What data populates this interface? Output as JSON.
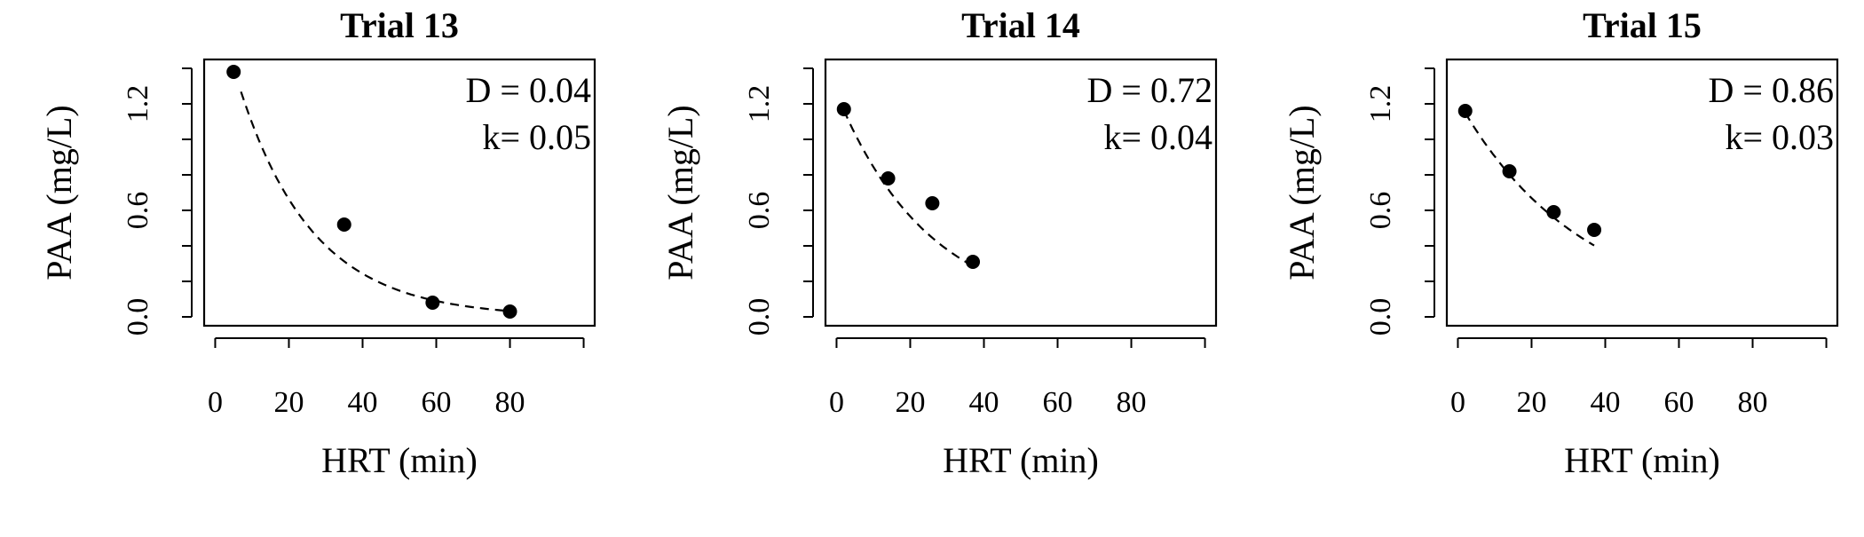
{
  "chart_data": [
    {
      "type": "scatter",
      "title": "Trial 13",
      "xlabel": "HRT (min)",
      "ylabel": "PAA (mg/L)",
      "xlim": [
        -3,
        103
      ],
      "ylim": [
        -0.05,
        1.45
      ],
      "xticks": [
        "0",
        "20",
        "40",
        "60",
        "80"
      ],
      "yticks": [
        "0.0",
        "0.6",
        "1.2"
      ],
      "annotation": [
        "D = 0.04",
        "k= 0.05"
      ],
      "series": [
        {
          "points": [
            {
              "x": 5,
              "y": 1.38
            },
            {
              "x": 35,
              "y": 0.52
            },
            {
              "x": 59,
              "y": 0.08
            },
            {
              "x": 80,
              "y": 0.03
            }
          ]
        }
      ],
      "fit": {
        "style": "dashed",
        "model": "exponential",
        "D": 0.04,
        "k": 0.05,
        "C0": 1.8,
        "x_start": 7,
        "x_end": 80
      }
    },
    {
      "type": "scatter",
      "title": "Trial 14",
      "xlabel": "HRT (min)",
      "ylabel": "PAA (mg/L)",
      "xlim": [
        -3,
        103
      ],
      "ylim": [
        -0.05,
        1.45
      ],
      "xticks": [
        "0",
        "20",
        "40",
        "60",
        "80"
      ],
      "yticks": [
        "0.0",
        "0.6",
        "1.2"
      ],
      "annotation": [
        "D = 0.72",
        "k= 0.04"
      ],
      "series": [
        {
          "points": [
            {
              "x": 2,
              "y": 1.17
            },
            {
              "x": 14,
              "y": 0.78
            },
            {
              "x": 26,
              "y": 0.64
            },
            {
              "x": 37,
              "y": 0.31
            }
          ]
        }
      ],
      "fit": {
        "style": "dashed",
        "model": "exponential",
        "D": 0.72,
        "k": 0.04,
        "C0": 1.26,
        "x_start": 2,
        "x_end": 37
      }
    },
    {
      "type": "scatter",
      "title": "Trial 15",
      "xlabel": "HRT (min)",
      "ylabel": "PAA (mg/L)",
      "xlim": [
        -3,
        103
      ],
      "ylim": [
        -0.05,
        1.45
      ],
      "xticks": [
        "0",
        "20",
        "40",
        "60",
        "80"
      ],
      "yticks": [
        "0.0",
        "0.6",
        "1.2"
      ],
      "annotation": [
        "D = 0.86",
        "k= 0.03"
      ],
      "series": [
        {
          "points": [
            {
              "x": 2,
              "y": 1.16
            },
            {
              "x": 14,
              "y": 0.82
            },
            {
              "x": 26,
              "y": 0.59
            },
            {
              "x": 37,
              "y": 0.49
            }
          ]
        }
      ],
      "fit": {
        "style": "dashed",
        "model": "exponential",
        "D": 0.86,
        "k": 0.03,
        "C0": 1.22,
        "x_start": 2,
        "x_end": 37
      }
    }
  ]
}
